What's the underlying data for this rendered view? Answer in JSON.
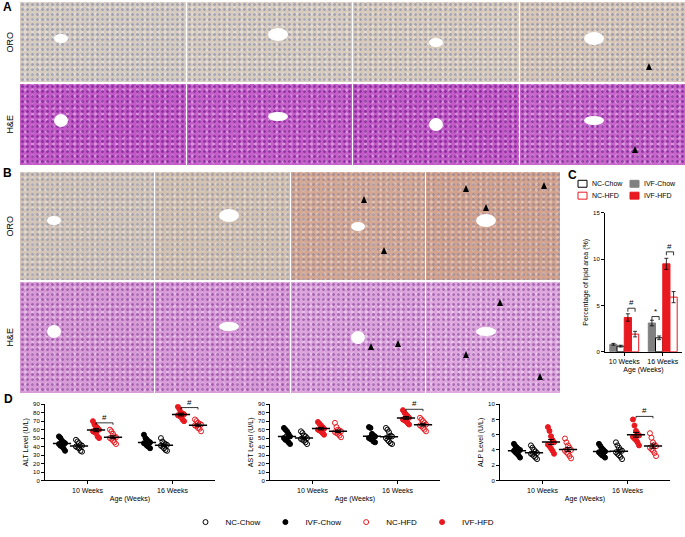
{
  "image_panels": [
    {
      "label": "A",
      "rows": [
        "ORO",
        "H&E"
      ]
    },
    {
      "label": "B",
      "rows": [
        "ORO",
        "H&E"
      ]
    }
  ],
  "chart_data": [
    {
      "type": "bar",
      "panel": "C",
      "legend": "top",
      "categories": [
        "10 Weeks",
        "16 Weeks"
      ],
      "xlabel": "Age (Weeks)",
      "ylabel": "Percentage of lipid area (%)",
      "ylim": [
        0,
        15
      ],
      "yticks": [
        0,
        5,
        10,
        15
      ],
      "series": [
        {
          "name": "IVF-Chow",
          "color": "#808080",
          "marker": "filled",
          "values": [
            0.8,
            3.1
          ],
          "errors": [
            0.1,
            0.3
          ]
        },
        {
          "name": "NC-Chow",
          "color": "#000000",
          "marker": "open",
          "values": [
            0.6,
            1.5
          ],
          "errors": [
            0.1,
            0.2
          ]
        },
        {
          "name": "IVF-HFD",
          "color": "#e8191f",
          "marker": "filled",
          "values": [
            3.7,
            9.5
          ],
          "errors": [
            0.4,
            0.6
          ]
        },
        {
          "name": "NC-HFD",
          "color": "#e8191f",
          "marker": "open",
          "values": [
            1.9,
            5.9
          ],
          "errors": [
            0.3,
            0.6
          ]
        }
      ],
      "annotations": [
        {
          "text": "#",
          "category": "10 Weeks",
          "pair": [
            "IVF-HFD",
            "NC-HFD"
          ],
          "y": 4.7
        },
        {
          "text": "*",
          "category": "16 Weeks",
          "pair": [
            "IVF-Chow",
            "NC-Chow"
          ],
          "y": 3.8
        },
        {
          "text": "#",
          "category": "16 Weeks",
          "pair": [
            "IVF-HFD",
            "NC-HFD"
          ],
          "y": 10.8
        }
      ]
    },
    {
      "type": "dot",
      "panel": "D",
      "legend": "bottom",
      "categories": [
        "10 Weeks",
        "16 Weeks"
      ],
      "xlabel": "Age (Weeks)",
      "ylabel": "ALT Level (U/L)",
      "ylim": [
        0,
        90
      ],
      "yticks": [
        0,
        10,
        20,
        30,
        40,
        50,
        60,
        70,
        80,
        90
      ],
      "series": [
        {
          "name": "IVF-Chow",
          "color": "#000000",
          "marker": "filled",
          "values": [
            [
              52,
              50,
              47,
              45,
              44,
              43,
              41,
              40,
              38,
              35
            ],
            [
              54,
              50,
              48,
              46,
              45,
              44,
              43,
              41,
              40,
              38
            ]
          ],
          "mean": [
            43.5,
            44.9
          ],
          "sem": [
            1.6,
            1.5
          ]
        },
        {
          "name": "NC-Chow",
          "color": "#000000",
          "marker": "open",
          "values": [
            [
              48,
              46,
              44,
              42,
              41,
              40,
              39,
              38,
              35,
              34
            ],
            [
              50,
              46,
              44,
              43,
              42,
              41,
              40,
              38,
              36,
              35
            ]
          ],
          "mean": [
            40.7,
            41.5
          ],
          "sem": [
            1.4,
            1.4
          ]
        },
        {
          "name": "IVF-HFD",
          "color": "#e8191f",
          "marker": "filled",
          "values": [
            [
              70,
              66,
              64,
              62,
              60,
              58,
              57,
              56,
              52,
              50
            ],
            [
              87,
              84,
              80,
              79,
              78,
              77,
              76,
              75,
              72,
              70
            ]
          ],
          "mean": [
            59.5,
            77.8
          ],
          "sem": [
            1.9,
            1.6
          ]
        },
        {
          "name": "NC-HFD",
          "color": "#e8191f",
          "marker": "open",
          "values": [
            [
              60,
              58,
              55,
              52,
              51,
              50,
              49,
              47,
              45,
              43
            ],
            [
              72,
              70,
              68,
              67,
              66,
              65,
              64,
              62,
              61,
              58
            ]
          ],
          "mean": [
            51.0,
            65.3
          ],
          "sem": [
            1.7,
            1.3
          ]
        }
      ],
      "annotations": [
        {
          "text": "#",
          "category": "10 Weeks",
          "pair": [
            "IVF-HFD",
            "NC-HFD"
          ],
          "y": 68
        },
        {
          "text": "#",
          "category": "16 Weeks",
          "pair": [
            "IVF-HFD",
            "NC-HFD"
          ],
          "y": 86
        }
      ]
    },
    {
      "type": "dot",
      "categories": [
        "10 Weeks",
        "16 Weeks"
      ],
      "xlabel": "Age (Weeks)",
      "ylabel": "AST Level (U/L)",
      "ylim": [
        0,
        90
      ],
      "yticks": [
        0,
        10,
        20,
        30,
        40,
        50,
        60,
        70,
        80,
        90
      ],
      "series": [
        {
          "name": "IVF-Chow",
          "color": "#000000",
          "marker": "filled",
          "values": [
            [
              62,
              60,
              58,
              55,
              52,
              50,
              48,
              47,
              45,
              43
            ],
            [
              63,
              62,
              55,
              53,
              52,
              50,
              49,
              48,
              46,
              45
            ]
          ],
          "mean": [
            52.0,
            52.3
          ],
          "sem": [
            2.0,
            2.0
          ]
        },
        {
          "name": "NC-Chow",
          "color": "#000000",
          "marker": "open",
          "values": [
            [
              58,
              56,
              53,
              52,
              50,
              49,
              48,
              47,
              45,
              43
            ],
            [
              62,
              60,
              57,
              53,
              52,
              50,
              48,
              46,
              44,
              43
            ]
          ],
          "mean": [
            50.1,
            51.5
          ],
          "sem": [
            1.4,
            2.1
          ]
        },
        {
          "name": "IVF-HFD",
          "color": "#e8191f",
          "marker": "filled",
          "values": [
            [
              69,
              67,
              65,
              63,
              61,
              60,
              59,
              58,
              56,
              54
            ],
            [
              83,
              80,
              78,
              76,
              74,
              72,
              71,
              70,
              68,
              66
            ]
          ],
          "mean": [
            61.2,
            73.8
          ],
          "sem": [
            1.5,
            1.6
          ]
        },
        {
          "name": "NC-HFD",
          "color": "#e8191f",
          "marker": "open",
          "values": [
            [
              68,
              63,
              60,
              59,
              58,
              57,
              56,
              55,
              53,
              51
            ],
            [
              74,
              72,
              70,
              68,
              66,
              65,
              64,
              62,
              60,
              58
            ]
          ],
          "mean": [
            58.0,
            65.9
          ],
          "sem": [
            1.5,
            1.6
          ]
        }
      ],
      "annotations": [
        {
          "text": "#",
          "category": "16 Weeks",
          "pair": [
            "IVF-HFD",
            "NC-HFD"
          ],
          "y": 84
        }
      ]
    },
    {
      "type": "dot",
      "categories": [
        "10 Weeks",
        "16 Weeks"
      ],
      "xlabel": "Age (Weeks)",
      "ylabel": "ALP Level (U/L)",
      "ylim": [
        0,
        10
      ],
      "yticks": [
        0,
        2,
        4,
        6,
        8,
        10
      ],
      "series": [
        {
          "name": "IVF-Chow",
          "color": "#000000",
          "marker": "filled",
          "values": [
            [
              4.8,
              4.5,
              4.3,
              4.1,
              4.0,
              3.9,
              3.7,
              3.5,
              3.3,
              3.0
            ],
            [
              4.8,
              4.5,
              4.2,
              4.0,
              3.8,
              3.7,
              3.5,
              3.3,
              3.2,
              3.0
            ]
          ],
          "mean": [
            3.91,
            3.8
          ],
          "sem": [
            0.17,
            0.18
          ]
        },
        {
          "name": "NC-Chow",
          "color": "#000000",
          "marker": "open",
          "values": [
            [
              4.6,
              4.3,
              4.0,
              3.8,
              3.6,
              3.5,
              3.4,
              3.2,
              3.0,
              2.8
            ],
            [
              5.0,
              4.6,
              4.3,
              4.0,
              3.9,
              3.7,
              3.5,
              3.3,
              3.1,
              2.8
            ]
          ],
          "mean": [
            3.62,
            3.82
          ],
          "sem": [
            0.17,
            0.2
          ]
        },
        {
          "name": "IVF-HFD",
          "color": "#e8191f",
          "marker": "filled",
          "values": [
            [
              7.0,
              6.5,
              5.8,
              5.3,
              5.0,
              4.7,
              4.5,
              4.2,
              3.9,
              3.5
            ],
            [
              8.0,
              7.2,
              6.5,
              6.2,
              5.9,
              5.7,
              5.5,
              5.3,
              5.0,
              4.6
            ]
          ],
          "mean": [
            5.04,
            5.99
          ],
          "sem": [
            0.34,
            0.31
          ]
        },
        {
          "name": "NC-HFD",
          "color": "#e8191f",
          "marker": "open",
          "values": [
            [
              5.5,
              5.0,
              4.6,
              4.3,
              4.0,
              3.9,
              3.7,
              3.5,
              3.2,
              2.9
            ],
            [
              6.2,
              5.6,
              5.0,
              4.7,
              4.5,
              4.3,
              4.1,
              3.9,
              3.6,
              3.2
            ]
          ],
          "mean": [
            4.06,
            4.51
          ],
          "sem": [
            0.24,
            0.27
          ]
        }
      ],
      "annotations": [
        {
          "text": "#",
          "category": "16 Weeks",
          "pair": [
            "IVF-HFD",
            "NC-HFD"
          ],
          "y": 8.4
        }
      ]
    }
  ]
}
